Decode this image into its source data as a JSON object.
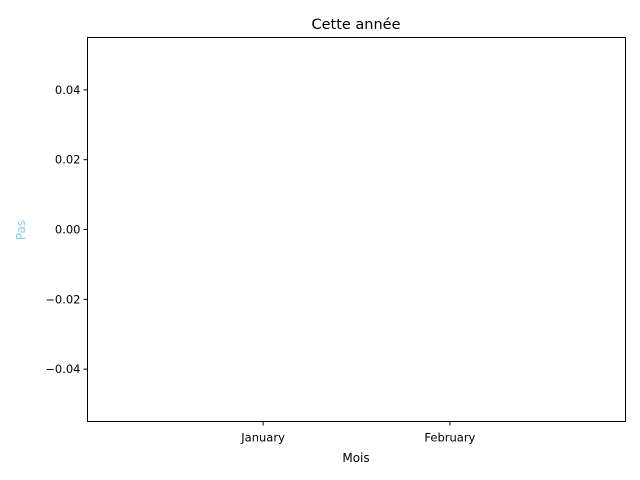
{
  "chart_data": {
    "type": "bar",
    "title": "Cette année",
    "xlabel": "Mois",
    "ylabel": "Pas",
    "categories": [
      "January",
      "February"
    ],
    "values": [
      0,
      0
    ],
    "ylim": [
      -0.055,
      0.055
    ],
    "yticks": [
      -0.04,
      -0.02,
      0.0,
      0.02,
      0.04
    ],
    "ytick_labels": [
      "−0.04",
      "−0.02",
      "0.00",
      "0.02",
      "0.04"
    ],
    "grid": false,
    "colors": {
      "ylabel": "#87ceeb",
      "bar": "#87ceeb",
      "axis": "#000000"
    }
  }
}
